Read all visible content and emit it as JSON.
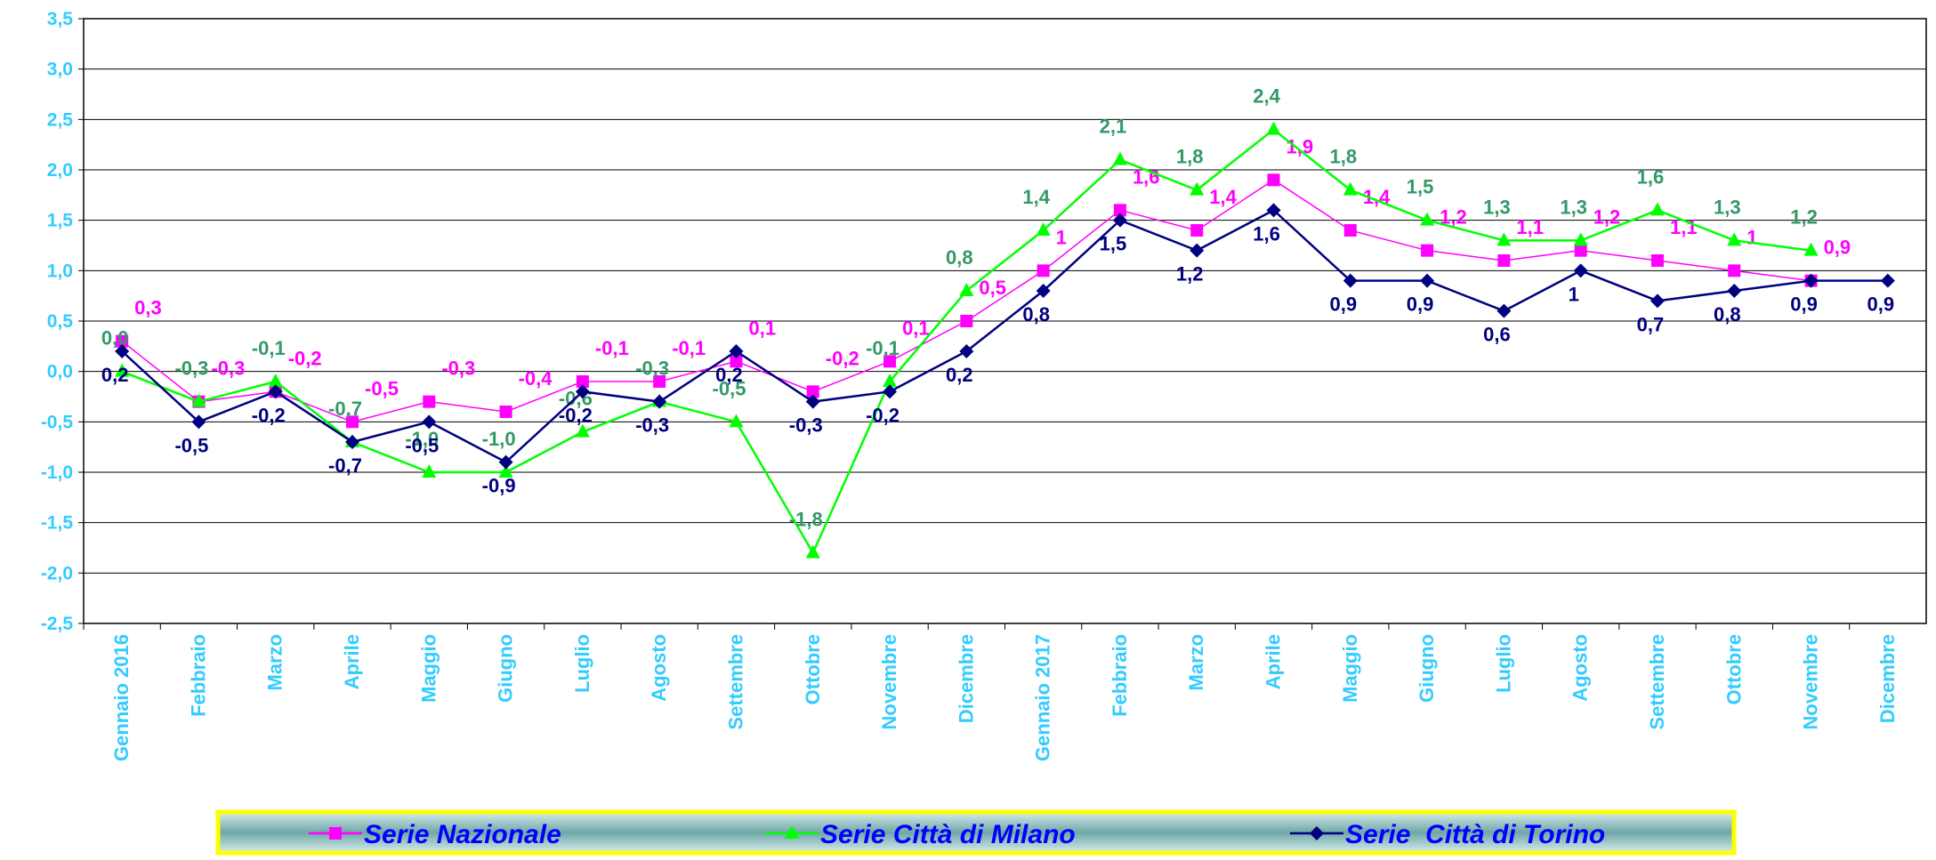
{
  "chart_data": {
    "type": "line",
    "categories": [
      "Gennaio 2016",
      "Febbraio",
      "Marzo",
      "Aprile",
      "Maggio",
      "Giugno",
      "Luglio",
      "Agosto",
      "Settembre",
      "Ottobre",
      "Novembre",
      "Dicembre",
      "Gennaio 2017",
      "Febbraio",
      "Marzo",
      "Aprile",
      "Maggio",
      "Giugno",
      "Luglio",
      "Agosto",
      "Settembre",
      "Ottobre",
      "Novembre",
      "Dicembre"
    ],
    "series": [
      {
        "name": "Serie Nazionale",
        "color": "#ff00ff",
        "label_color": "#ff00ff",
        "marker": "square",
        "values": [
          0.3,
          -0.3,
          -0.2,
          -0.5,
          -0.3,
          -0.4,
          -0.1,
          -0.1,
          0.1,
          -0.2,
          0.1,
          0.5,
          1,
          1.6,
          1.4,
          1.9,
          1.4,
          1.2,
          1.1,
          1.2,
          1.1,
          1,
          0.9,
          null
        ],
        "value_labels": [
          "0,3",
          "-0,3",
          "-0,2",
          "-0,5",
          "-0,3",
          "-0,4",
          "-0,1",
          "-0,1",
          "0,1",
          "-0,2",
          "0,1",
          "0,5",
          "1",
          "1,6",
          "1,4",
          "1,9",
          "1,4",
          "1,2",
          "1,1",
          "1,2",
          "1,1",
          "1",
          "0,9",
          null
        ]
      },
      {
        "name": "Serie Città di Milano",
        "color": "#00ff00",
        "label_color": "#339966",
        "marker": "triangle",
        "values": [
          0.0,
          -0.3,
          -0.1,
          -0.7,
          -1.0,
          -1.0,
          -0.6,
          -0.3,
          -0.5,
          -1.8,
          -0.1,
          0.8,
          1.4,
          2.1,
          1.8,
          2.4,
          1.8,
          1.5,
          1.3,
          1.3,
          1.6,
          1.3,
          1.2,
          null
        ],
        "value_labels": [
          "0,0",
          "-0,3",
          "-0,1",
          "-0,7",
          "-1,0",
          "-1,0",
          "-0,6",
          "-0,3",
          "-0,5",
          "-1,8",
          "-0,1",
          "0,8",
          "1,4",
          "2,1",
          "1,8",
          "2,4",
          "1,8",
          "1,5",
          "1,3",
          "1,3",
          "1,6",
          "1,3",
          "1,2",
          null
        ]
      },
      {
        "name": "Serie  Città di Torino",
        "color": "#000080",
        "label_color": "#000080",
        "marker": "diamond",
        "values": [
          0.2,
          -0.5,
          -0.2,
          -0.7,
          -0.5,
          -0.9,
          -0.2,
          -0.3,
          0.2,
          -0.3,
          -0.2,
          0.2,
          0.8,
          1.5,
          1.2,
          1.6,
          0.9,
          0.9,
          0.6,
          1,
          0.7,
          0.8,
          0.9,
          0.9
        ],
        "value_labels": [
          "0,2",
          "-0,5",
          "-0,2",
          "-0,7",
          "-0,5",
          "-0,9",
          "-0,2",
          "-0,3",
          "0,2",
          "-0,3",
          "-0,2",
          "0,2",
          "0,8",
          "1,5",
          "1,2",
          "1,6",
          "0,9",
          "0,9",
          "0,6",
          "1",
          "0,7",
          "0,8",
          "0,9",
          "0,9"
        ]
      }
    ],
    "ylim": [
      -2.5,
      3.5
    ],
    "yticks": [
      {
        "value": -2.5,
        "label": "-2,5"
      },
      {
        "value": -2,
        "label": "-2,0"
      },
      {
        "value": -1.5,
        "label": "-1,5"
      },
      {
        "value": -1,
        "label": "-1,0"
      },
      {
        "value": -0.5,
        "label": "-0,5"
      },
      {
        "value": 0,
        "label": "0,0"
      },
      {
        "value": 0.5,
        "label": "0,5"
      },
      {
        "value": 1,
        "label": "1,0"
      },
      {
        "value": 1.5,
        "label": "1,5"
      },
      {
        "value": 2,
        "label": "2,0"
      },
      {
        "value": 2.5,
        "label": "2,5"
      },
      {
        "value": 3,
        "label": "3,0"
      },
      {
        "value": 3.5,
        "label": "3,5"
      }
    ],
    "grid": true,
    "legend": "bottom"
  }
}
